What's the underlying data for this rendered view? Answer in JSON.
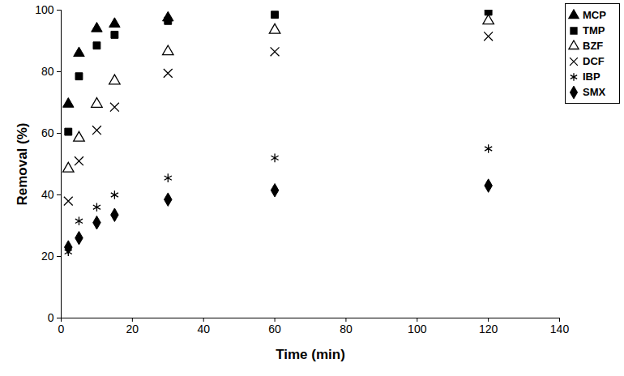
{
  "chart_data": {
    "type": "scatter",
    "x_label": "Time (min)",
    "y_label": "Removal (%)",
    "x": [
      2,
      5,
      10,
      15,
      30,
      60,
      120
    ],
    "series": [
      {
        "name": "MCP",
        "color": "#000000",
        "marker": "triangle",
        "values": [
          69.5,
          86,
          94,
          95.5,
          97.5,
          null,
          null
        ]
      },
      {
        "name": "TMP",
        "color": "#000000",
        "marker": "square",
        "values": [
          60.5,
          78.5,
          88.5,
          92,
          96.5,
          98.5,
          99.5
        ]
      },
      {
        "name": "BZF",
        "color": "#000000",
        "marker": "triangle-open",
        "values": [
          48.5,
          58.5,
          69.5,
          77,
          86.5,
          93.5,
          96.5
        ]
      },
      {
        "name": "DCF",
        "color": "#000000",
        "marker": "x",
        "values": [
          38,
          51,
          61,
          68.5,
          79.5,
          86.5,
          91.5
        ]
      },
      {
        "name": "IBP",
        "color": "#000000",
        "marker": "asterisk",
        "values": [
          21.5,
          31.5,
          36,
          40,
          45.5,
          52,
          55
        ]
      },
      {
        "name": "SMX",
        "color": "#000000",
        "marker": "diamond",
        "values": [
          23,
          26,
          31,
          33.5,
          38.5,
          41.5,
          43
        ]
      }
    ],
    "xlim": [
      0,
      140
    ],
    "xticks": [
      0,
      20,
      40,
      60,
      80,
      100,
      120,
      140
    ],
    "ylim": [
      0,
      100
    ],
    "yticks": [
      0,
      20,
      40,
      60,
      80,
      100
    ],
    "grid": false,
    "legend": "right"
  }
}
